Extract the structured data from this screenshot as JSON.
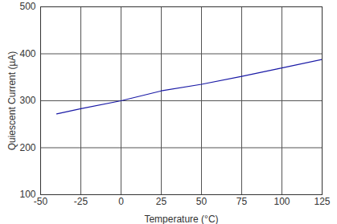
{
  "chart_data": {
    "type": "line",
    "x": [
      -40,
      -25,
      0,
      25,
      50,
      75,
      100,
      125
    ],
    "series": [
      {
        "name": "Quiescent Current",
        "color": "#1a1aa6",
        "values": [
          272,
          283,
          300,
          321,
          335,
          352,
          370,
          388
        ]
      }
    ],
    "x_label": "Temperature (°C)",
    "y_label": "Quiescent Current (µA)",
    "xlim": [
      -50,
      125
    ],
    "xticks": [
      -50,
      -25,
      0,
      25,
      50,
      75,
      100,
      125
    ],
    "ylim": [
      100,
      500
    ],
    "yticks": [
      100,
      200,
      300,
      400,
      500
    ],
    "grid": true
  }
}
